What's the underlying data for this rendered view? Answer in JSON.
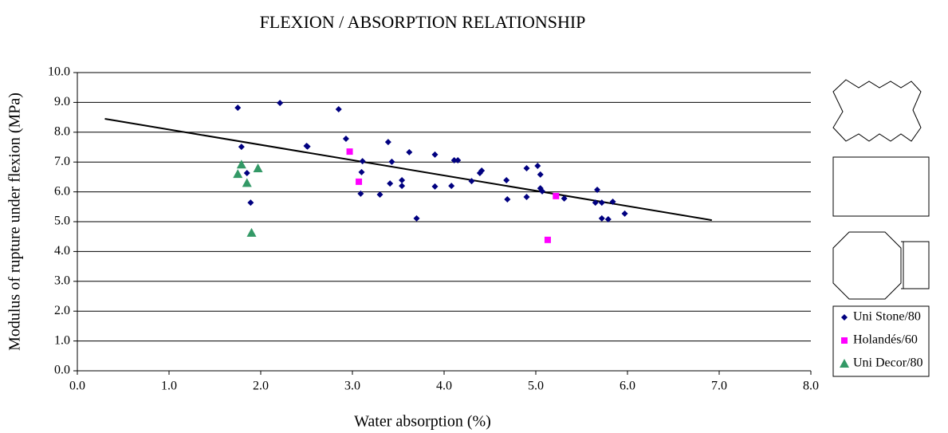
{
  "chart_data": {
    "type": "scatter",
    "title": "FLEXION / ABSORPTION RELATIONSHIP",
    "x_label": "Water absorption (%)",
    "y_label": "Modulus of rupture under flexion (MPa)",
    "xlim": [
      0,
      8
    ],
    "ylim": [
      0,
      10
    ],
    "xticks": [
      {
        "value": 0,
        "label": "0.0"
      },
      {
        "value": 1,
        "label": "1.0"
      },
      {
        "value": 2,
        "label": "2.0"
      },
      {
        "value": 3,
        "label": "3.0"
      },
      {
        "value": 4,
        "label": "4.0"
      },
      {
        "value": 5,
        "label": "5.0"
      },
      {
        "value": 6,
        "label": "6.0"
      },
      {
        "value": 7,
        "label": "7.0"
      },
      {
        "value": 8,
        "label": "8.0"
      }
    ],
    "yticks": [
      {
        "value": 0,
        "label": "0.0"
      },
      {
        "value": 1,
        "label": "1.0"
      },
      {
        "value": 2,
        "label": "2.0"
      },
      {
        "value": 3,
        "label": "3.0"
      },
      {
        "value": 4,
        "label": "4.0"
      },
      {
        "value": 5,
        "label": "5.0"
      },
      {
        "value": 6,
        "label": "6.0"
      },
      {
        "value": 7,
        "label": "7.0"
      },
      {
        "value": 8,
        "label": "8.0"
      },
      {
        "value": 9,
        "label": "9.0"
      },
      {
        "value": 10,
        "label": "10.0"
      }
    ],
    "grid": true,
    "legend": "right",
    "series": [
      {
        "name": "Uni Stone/80",
        "color": "#000080",
        "marker": "diamond",
        "x": [
          1.75,
          1.79,
          1.85,
          1.89,
          2.21,
          2.5,
          2.51,
          2.85,
          2.93,
          3.11,
          3.1,
          3.09,
          3.3,
          3.39,
          3.41,
          3.43,
          3.54,
          3.54,
          3.62,
          3.7,
          3.9,
          3.9,
          4.08,
          4.11,
          4.15,
          4.3,
          4.39,
          4.41,
          4.68,
          4.69,
          4.9,
          4.9,
          5.02,
          5.05,
          5.05,
          5.07,
          5.31,
          5.67,
          5.65,
          5.72,
          5.72,
          5.79,
          5.84,
          5.97
        ],
        "values": [
          8.82,
          7.51,
          6.63,
          5.64,
          8.98,
          7.54,
          7.52,
          8.77,
          7.78,
          7.03,
          6.66,
          5.94,
          5.91,
          7.67,
          6.28,
          7.01,
          6.39,
          6.2,
          7.33,
          5.11,
          7.25,
          6.18,
          6.2,
          7.06,
          7.06,
          6.36,
          6.63,
          6.71,
          6.39,
          5.75,
          6.79,
          5.83,
          6.87,
          6.58,
          6.12,
          6.02,
          5.78,
          6.07,
          5.64,
          5.64,
          5.11,
          5.08,
          5.67,
          5.27
        ]
      },
      {
        "name": "Holandés/60",
        "color": "#ff00ff",
        "marker": "square",
        "x": [
          2.97,
          3.07,
          5.22,
          5.13
        ],
        "values": [
          7.35,
          6.34,
          5.86,
          4.39
        ]
      },
      {
        "name": "Uni Decor/80",
        "color": "#339966",
        "marker": "triangle",
        "x": [
          1.75,
          1.79,
          1.85,
          1.9,
          1.97
        ],
        "values": [
          6.6,
          6.92,
          6.3,
          4.63,
          6.79
        ]
      }
    ],
    "trendline": {
      "color": "#000000",
      "x": [
        0.3,
        6.92
      ],
      "y": [
        8.45,
        5.05
      ]
    }
  }
}
